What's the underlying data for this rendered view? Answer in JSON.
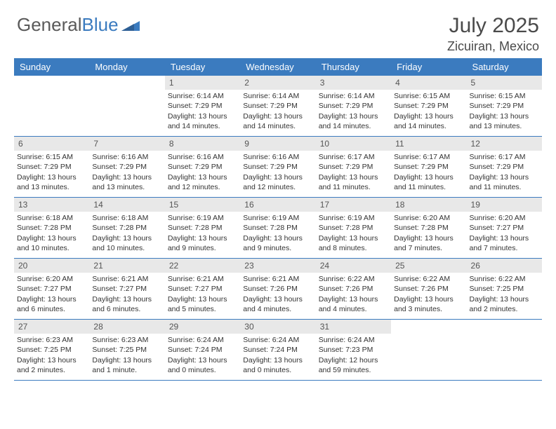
{
  "brand": {
    "part1": "General",
    "part2": "Blue"
  },
  "title": "July 2025",
  "location": "Zicuiran, Mexico",
  "colors": {
    "header_bg": "#3b7bbf",
    "header_text": "#ffffff",
    "daynum_bg": "#e8e8e8",
    "text": "#333333",
    "page_bg": "#ffffff",
    "rule": "#3b7bbf"
  },
  "day_names": [
    "Sunday",
    "Monday",
    "Tuesday",
    "Wednesday",
    "Thursday",
    "Friday",
    "Saturday"
  ],
  "weeks": [
    [
      null,
      null,
      {
        "n": "1",
        "sr": "Sunrise: 6:14 AM",
        "ss": "Sunset: 7:29 PM",
        "d1": "Daylight: 13 hours",
        "d2": "and 14 minutes."
      },
      {
        "n": "2",
        "sr": "Sunrise: 6:14 AM",
        "ss": "Sunset: 7:29 PM",
        "d1": "Daylight: 13 hours",
        "d2": "and 14 minutes."
      },
      {
        "n": "3",
        "sr": "Sunrise: 6:14 AM",
        "ss": "Sunset: 7:29 PM",
        "d1": "Daylight: 13 hours",
        "d2": "and 14 minutes."
      },
      {
        "n": "4",
        "sr": "Sunrise: 6:15 AM",
        "ss": "Sunset: 7:29 PM",
        "d1": "Daylight: 13 hours",
        "d2": "and 14 minutes."
      },
      {
        "n": "5",
        "sr": "Sunrise: 6:15 AM",
        "ss": "Sunset: 7:29 PM",
        "d1": "Daylight: 13 hours",
        "d2": "and 13 minutes."
      }
    ],
    [
      {
        "n": "6",
        "sr": "Sunrise: 6:15 AM",
        "ss": "Sunset: 7:29 PM",
        "d1": "Daylight: 13 hours",
        "d2": "and 13 minutes."
      },
      {
        "n": "7",
        "sr": "Sunrise: 6:16 AM",
        "ss": "Sunset: 7:29 PM",
        "d1": "Daylight: 13 hours",
        "d2": "and 13 minutes."
      },
      {
        "n": "8",
        "sr": "Sunrise: 6:16 AM",
        "ss": "Sunset: 7:29 PM",
        "d1": "Daylight: 13 hours",
        "d2": "and 12 minutes."
      },
      {
        "n": "9",
        "sr": "Sunrise: 6:16 AM",
        "ss": "Sunset: 7:29 PM",
        "d1": "Daylight: 13 hours",
        "d2": "and 12 minutes."
      },
      {
        "n": "10",
        "sr": "Sunrise: 6:17 AM",
        "ss": "Sunset: 7:29 PM",
        "d1": "Daylight: 13 hours",
        "d2": "and 11 minutes."
      },
      {
        "n": "11",
        "sr": "Sunrise: 6:17 AM",
        "ss": "Sunset: 7:29 PM",
        "d1": "Daylight: 13 hours",
        "d2": "and 11 minutes."
      },
      {
        "n": "12",
        "sr": "Sunrise: 6:17 AM",
        "ss": "Sunset: 7:29 PM",
        "d1": "Daylight: 13 hours",
        "d2": "and 11 minutes."
      }
    ],
    [
      {
        "n": "13",
        "sr": "Sunrise: 6:18 AM",
        "ss": "Sunset: 7:28 PM",
        "d1": "Daylight: 13 hours",
        "d2": "and 10 minutes."
      },
      {
        "n": "14",
        "sr": "Sunrise: 6:18 AM",
        "ss": "Sunset: 7:28 PM",
        "d1": "Daylight: 13 hours",
        "d2": "and 10 minutes."
      },
      {
        "n": "15",
        "sr": "Sunrise: 6:19 AM",
        "ss": "Sunset: 7:28 PM",
        "d1": "Daylight: 13 hours",
        "d2": "and 9 minutes."
      },
      {
        "n": "16",
        "sr": "Sunrise: 6:19 AM",
        "ss": "Sunset: 7:28 PM",
        "d1": "Daylight: 13 hours",
        "d2": "and 9 minutes."
      },
      {
        "n": "17",
        "sr": "Sunrise: 6:19 AM",
        "ss": "Sunset: 7:28 PM",
        "d1": "Daylight: 13 hours",
        "d2": "and 8 minutes."
      },
      {
        "n": "18",
        "sr": "Sunrise: 6:20 AM",
        "ss": "Sunset: 7:28 PM",
        "d1": "Daylight: 13 hours",
        "d2": "and 7 minutes."
      },
      {
        "n": "19",
        "sr": "Sunrise: 6:20 AM",
        "ss": "Sunset: 7:27 PM",
        "d1": "Daylight: 13 hours",
        "d2": "and 7 minutes."
      }
    ],
    [
      {
        "n": "20",
        "sr": "Sunrise: 6:20 AM",
        "ss": "Sunset: 7:27 PM",
        "d1": "Daylight: 13 hours",
        "d2": "and 6 minutes."
      },
      {
        "n": "21",
        "sr": "Sunrise: 6:21 AM",
        "ss": "Sunset: 7:27 PM",
        "d1": "Daylight: 13 hours",
        "d2": "and 6 minutes."
      },
      {
        "n": "22",
        "sr": "Sunrise: 6:21 AM",
        "ss": "Sunset: 7:27 PM",
        "d1": "Daylight: 13 hours",
        "d2": "and 5 minutes."
      },
      {
        "n": "23",
        "sr": "Sunrise: 6:21 AM",
        "ss": "Sunset: 7:26 PM",
        "d1": "Daylight: 13 hours",
        "d2": "and 4 minutes."
      },
      {
        "n": "24",
        "sr": "Sunrise: 6:22 AM",
        "ss": "Sunset: 7:26 PM",
        "d1": "Daylight: 13 hours",
        "d2": "and 4 minutes."
      },
      {
        "n": "25",
        "sr": "Sunrise: 6:22 AM",
        "ss": "Sunset: 7:26 PM",
        "d1": "Daylight: 13 hours",
        "d2": "and 3 minutes."
      },
      {
        "n": "26",
        "sr": "Sunrise: 6:22 AM",
        "ss": "Sunset: 7:25 PM",
        "d1": "Daylight: 13 hours",
        "d2": "and 2 minutes."
      }
    ],
    [
      {
        "n": "27",
        "sr": "Sunrise: 6:23 AM",
        "ss": "Sunset: 7:25 PM",
        "d1": "Daylight: 13 hours",
        "d2": "and 2 minutes."
      },
      {
        "n": "28",
        "sr": "Sunrise: 6:23 AM",
        "ss": "Sunset: 7:25 PM",
        "d1": "Daylight: 13 hours",
        "d2": "and 1 minute."
      },
      {
        "n": "29",
        "sr": "Sunrise: 6:24 AM",
        "ss": "Sunset: 7:24 PM",
        "d1": "Daylight: 13 hours",
        "d2": "and 0 minutes."
      },
      {
        "n": "30",
        "sr": "Sunrise: 6:24 AM",
        "ss": "Sunset: 7:24 PM",
        "d1": "Daylight: 13 hours",
        "d2": "and 0 minutes."
      },
      {
        "n": "31",
        "sr": "Sunrise: 6:24 AM",
        "ss": "Sunset: 7:23 PM",
        "d1": "Daylight: 12 hours",
        "d2": "and 59 minutes."
      },
      null,
      null
    ]
  ]
}
